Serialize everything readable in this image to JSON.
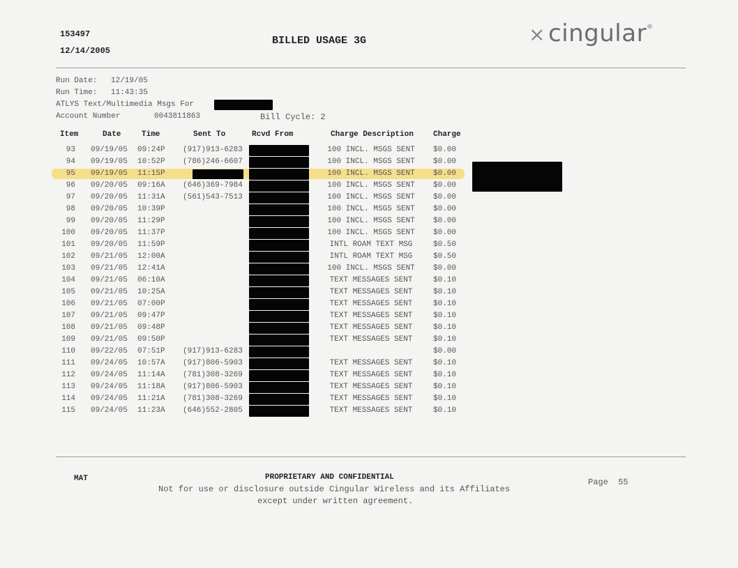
{
  "header": {
    "id": "153497",
    "date": "12/14/2005",
    "title": "BILLED USAGE 3G",
    "logo_text": "cingular",
    "logo_mark": "⨯",
    "logo_reg": "®"
  },
  "meta": {
    "run_date_label": "Run Date:",
    "run_date": "12/19/05",
    "run_time_label": "Run Time:",
    "run_time": "11:43:35",
    "msgs_for_label": "ATLYS Text/Multimedia Msgs For",
    "account_label": "Account Number",
    "account_number": "0043811863",
    "bill_cycle": "Bill Cycle: 2"
  },
  "table": {
    "columns": [
      "Item",
      "Date",
      "Time",
      "Sent To",
      "Rcvd From",
      "Charge Description",
      "Charge"
    ],
    "highlighted_item": "95",
    "highlight_color": "#f6d978",
    "rows": [
      {
        "item": "93",
        "date": "09/19/05",
        "time": "09:24P",
        "sent_to": "(917)913-6283",
        "desc": "100 INCL. MSGS SENT",
        "charge": "$0.00"
      },
      {
        "item": "94",
        "date": "09/19/05",
        "time": "10:52P",
        "sent_to": "(786)246-6607",
        "desc": "100 INCL. MSGS SENT",
        "charge": "$0.00"
      },
      {
        "item": "95",
        "date": "09/19/05",
        "time": "11:15P",
        "sent_to": "",
        "sent_redacted": true,
        "desc": "100 INCL. MSGS SENT",
        "charge": "$0.00"
      },
      {
        "item": "96",
        "date": "09/20/05",
        "time": "09:16A",
        "sent_to": "(646)369-7984",
        "desc": "100 INCL. MSGS SENT",
        "charge": "$0.00"
      },
      {
        "item": "97",
        "date": "09/20/05",
        "time": "11:31A",
        "sent_to": "(561)543-7513",
        "desc": "100 INCL. MSGS SENT",
        "charge": "$0.00"
      },
      {
        "item": "98",
        "date": "09/20/05",
        "time": "10:39P",
        "sent_to": "",
        "desc": "100 INCL. MSGS SENT",
        "charge": "$0.00"
      },
      {
        "item": "99",
        "date": "09/20/05",
        "time": "11:29P",
        "sent_to": "",
        "desc": "100 INCL. MSGS SENT",
        "charge": "$0.00"
      },
      {
        "item": "100",
        "date": "09/20/05",
        "time": "11:37P",
        "sent_to": "",
        "desc": "100 INCL. MSGS SENT",
        "charge": "$0.00"
      },
      {
        "item": "101",
        "date": "09/20/05",
        "time": "11:59P",
        "sent_to": "",
        "desc": "INTL ROAM TEXT MSG",
        "charge": "$0.50"
      },
      {
        "item": "102",
        "date": "09/21/05",
        "time": "12:00A",
        "sent_to": "",
        "desc": "INTL ROAM TEXT MSG",
        "charge": "$0.50"
      },
      {
        "item": "103",
        "date": "09/21/05",
        "time": "12:41A",
        "sent_to": "",
        "desc": "100 INCL. MSGS SENT",
        "charge": "$0.00"
      },
      {
        "item": "104",
        "date": "09/21/05",
        "time": "06:10A",
        "sent_to": "",
        "desc": "TEXT MESSAGES SENT",
        "charge": "$0.10"
      },
      {
        "item": "105",
        "date": "09/21/05",
        "time": "10:25A",
        "sent_to": "",
        "desc": "TEXT MESSAGES SENT",
        "charge": "$0.10"
      },
      {
        "item": "106",
        "date": "09/21/05",
        "time": "07:00P",
        "sent_to": "",
        "desc": "TEXT MESSAGES SENT",
        "charge": "$0.10"
      },
      {
        "item": "107",
        "date": "09/21/05",
        "time": "09:47P",
        "sent_to": "",
        "desc": "TEXT MESSAGES SENT",
        "charge": "$0.10"
      },
      {
        "item": "108",
        "date": "09/21/05",
        "time": "09:48P",
        "sent_to": "",
        "desc": "TEXT MESSAGES SENT",
        "charge": "$0.10"
      },
      {
        "item": "109",
        "date": "09/21/05",
        "time": "09:50P",
        "sent_to": "",
        "desc": "TEXT MESSAGES SENT",
        "charge": "$0.10"
      },
      {
        "item": "110",
        "date": "09/22/05",
        "time": "07:51P",
        "sent_to": "(917)913-6283",
        "desc": "",
        "charge": "$0.00"
      },
      {
        "item": "111",
        "date": "09/24/05",
        "time": "10:57A",
        "sent_to": "(917)806-5903",
        "desc": "TEXT MESSAGES SENT",
        "charge": "$0.10"
      },
      {
        "item": "112",
        "date": "09/24/05",
        "time": "11:14A",
        "sent_to": "(781)308-3269",
        "desc": "TEXT MESSAGES SENT",
        "charge": "$0.10"
      },
      {
        "item": "113",
        "date": "09/24/05",
        "time": "11:18A",
        "sent_to": "(917)806-5903",
        "desc": "TEXT MESSAGES SENT",
        "charge": "$0.10"
      },
      {
        "item": "114",
        "date": "09/24/05",
        "time": "11:21A",
        "sent_to": "(781)308-3269",
        "desc": "TEXT MESSAGES SENT",
        "charge": "$0.10"
      },
      {
        "item": "115",
        "date": "09/24/05",
        "time": "11:23A",
        "sent_to": "(646)552-2805",
        "desc": "TEXT MESSAGES SENT",
        "charge": "$0.10"
      }
    ]
  },
  "footer": {
    "code": "MAT",
    "heading": "PROPRIETARY AND CONFIDENTIAL",
    "line1": "Not for use or disclosure outside Cingular Wireless and its Affiliates",
    "line2": "except under written agreement.",
    "page_label": "Page",
    "page_number": "55"
  }
}
